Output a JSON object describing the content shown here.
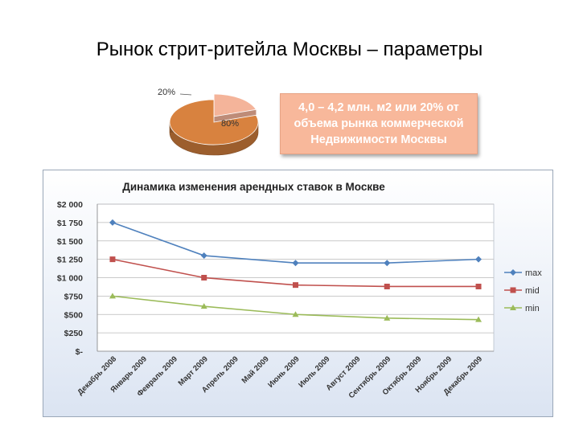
{
  "slide": {
    "title": "Рынок стрит-ритейла Москвы – параметры"
  },
  "callout": {
    "lines": [
      "4,0 – 4,2 млн. м2 или 20% от",
      "объема рынка коммерческой",
      "Недвижимости Москвы"
    ],
    "bg_color": "#f8b89b"
  },
  "chart_data": [
    {
      "type": "pie",
      "title": "",
      "labels": [
        "20%",
        "80%"
      ],
      "values": [
        20,
        80
      ],
      "colors": [
        "#f4b49a",
        "#d8823f"
      ],
      "style": "3d, small slice exploded"
    },
    {
      "type": "line",
      "title": "Динамика изменения арендных ставок в Москве",
      "categories": [
        "Декабрь 2008",
        "Январь 2009",
        "Февраль 2009",
        "Март 2009",
        "Апрель 2009",
        "Май 2009",
        "Июнь 2009",
        "Июль 2009",
        "Август 2009",
        "Сентябрь 2009",
        "Октябрь 2009",
        "Ноябрь 2009",
        "Декабрь 2009"
      ],
      "series": [
        {
          "name": "max",
          "color": "#4f81bd",
          "marker": "diamond",
          "points": [
            {
              "x": "Декабрь 2008",
              "y": 1750
            },
            {
              "x": "Март 2009",
              "y": 1300
            },
            {
              "x": "Июнь 2009",
              "y": 1200
            },
            {
              "x": "Сентябрь 2009",
              "y": 1200
            },
            {
              "x": "Декабрь 2009",
              "y": 1250
            }
          ]
        },
        {
          "name": "mid",
          "color": "#c0504d",
          "marker": "square",
          "points": [
            {
              "x": "Декабрь 2008",
              "y": 1250
            },
            {
              "x": "Март 2009",
              "y": 1000
            },
            {
              "x": "Июнь 2009",
              "y": 900
            },
            {
              "x": "Сентябрь 2009",
              "y": 880
            },
            {
              "x": "Декабрь 2009",
              "y": 880
            }
          ]
        },
        {
          "name": "min",
          "color": "#9bbb59",
          "marker": "triangle",
          "points": [
            {
              "x": "Декабрь 2008",
              "y": 750
            },
            {
              "x": "Март 2009",
              "y": 610
            },
            {
              "x": "Июнь 2009",
              "y": 500
            },
            {
              "x": "Сентябрь 2009",
              "y": 450
            },
            {
              "x": "Декабрь 2009",
              "y": 430
            }
          ]
        }
      ],
      "ylim": [
        0,
        2000
      ],
      "yticks": [
        0,
        250,
        500,
        750,
        1000,
        1250,
        1500,
        1750,
        2000
      ],
      "ytick_labels": [
        "$-",
        "$250",
        "$500",
        "$750",
        "$1 000",
        "$1 250",
        "$1 500",
        "$1 750",
        "$2 000"
      ],
      "grid": "horizontal",
      "legend": "right",
      "background": "gradient light-blue"
    }
  ]
}
